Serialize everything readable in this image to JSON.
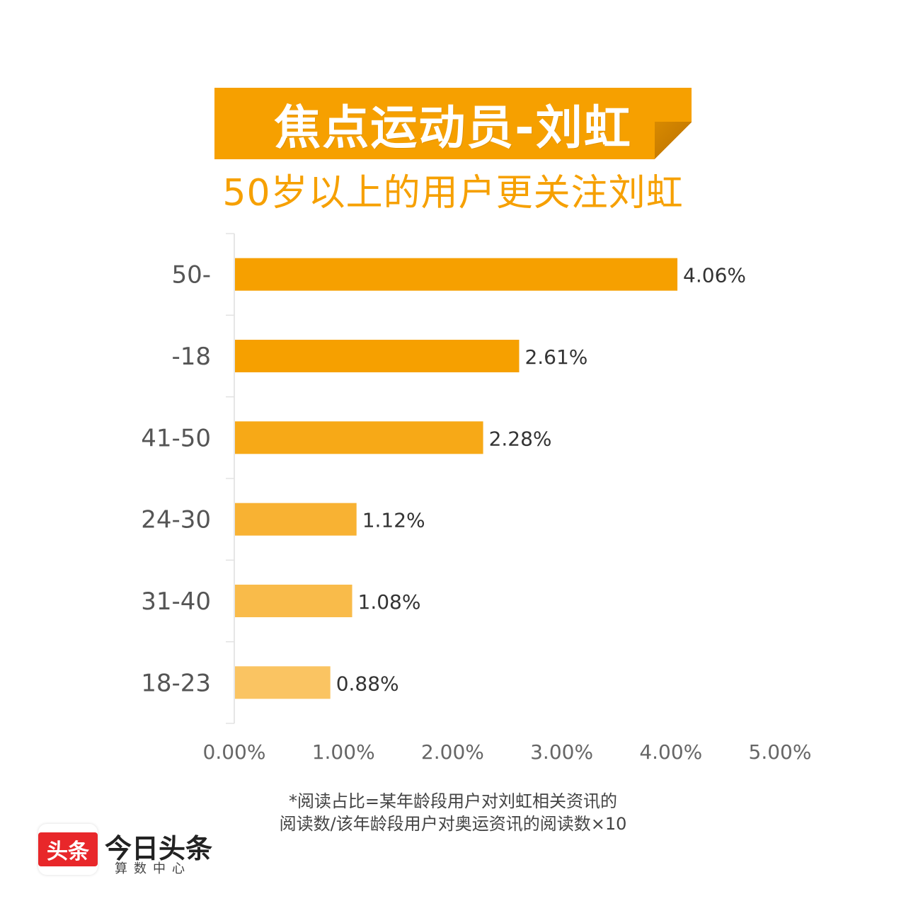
{
  "header": {
    "title": "焦点运动员-刘虹",
    "subtitle": "50岁以上的用户更关注刘虹"
  },
  "chart_data": {
    "type": "bar",
    "orientation": "horizontal",
    "categories": [
      "50-",
      "-18",
      "41-50",
      "24-30",
      "31-40",
      "18-23"
    ],
    "values": [
      4.06,
      2.61,
      2.28,
      1.12,
      1.08,
      0.88
    ],
    "value_labels": [
      "4.06%",
      "2.61%",
      "2.28%",
      "1.12%",
      "1.08%",
      "0.88%"
    ],
    "bar_colors": [
      "#f6a000",
      "#f6a000",
      "#f7a917",
      "#f8b233",
      "#f9bb4a",
      "#fac462"
    ],
    "xlim": [
      0,
      5
    ],
    "xticks": [
      0,
      1,
      2,
      3,
      4,
      5
    ],
    "xtick_labels": [
      "0.00%",
      "1.00%",
      "2.00%",
      "3.00%",
      "4.00%",
      "5.00%"
    ],
    "grid": false,
    "legend": "none"
  },
  "footnote": {
    "line1": "*阅读占比=某年龄段用户对刘虹相关资讯的",
    "line2": "阅读数/该年龄段用户对奥运资讯的阅读数×10"
  },
  "brand": {
    "badge": "头条",
    "name": "今日头条",
    "sub": "算数中心"
  }
}
